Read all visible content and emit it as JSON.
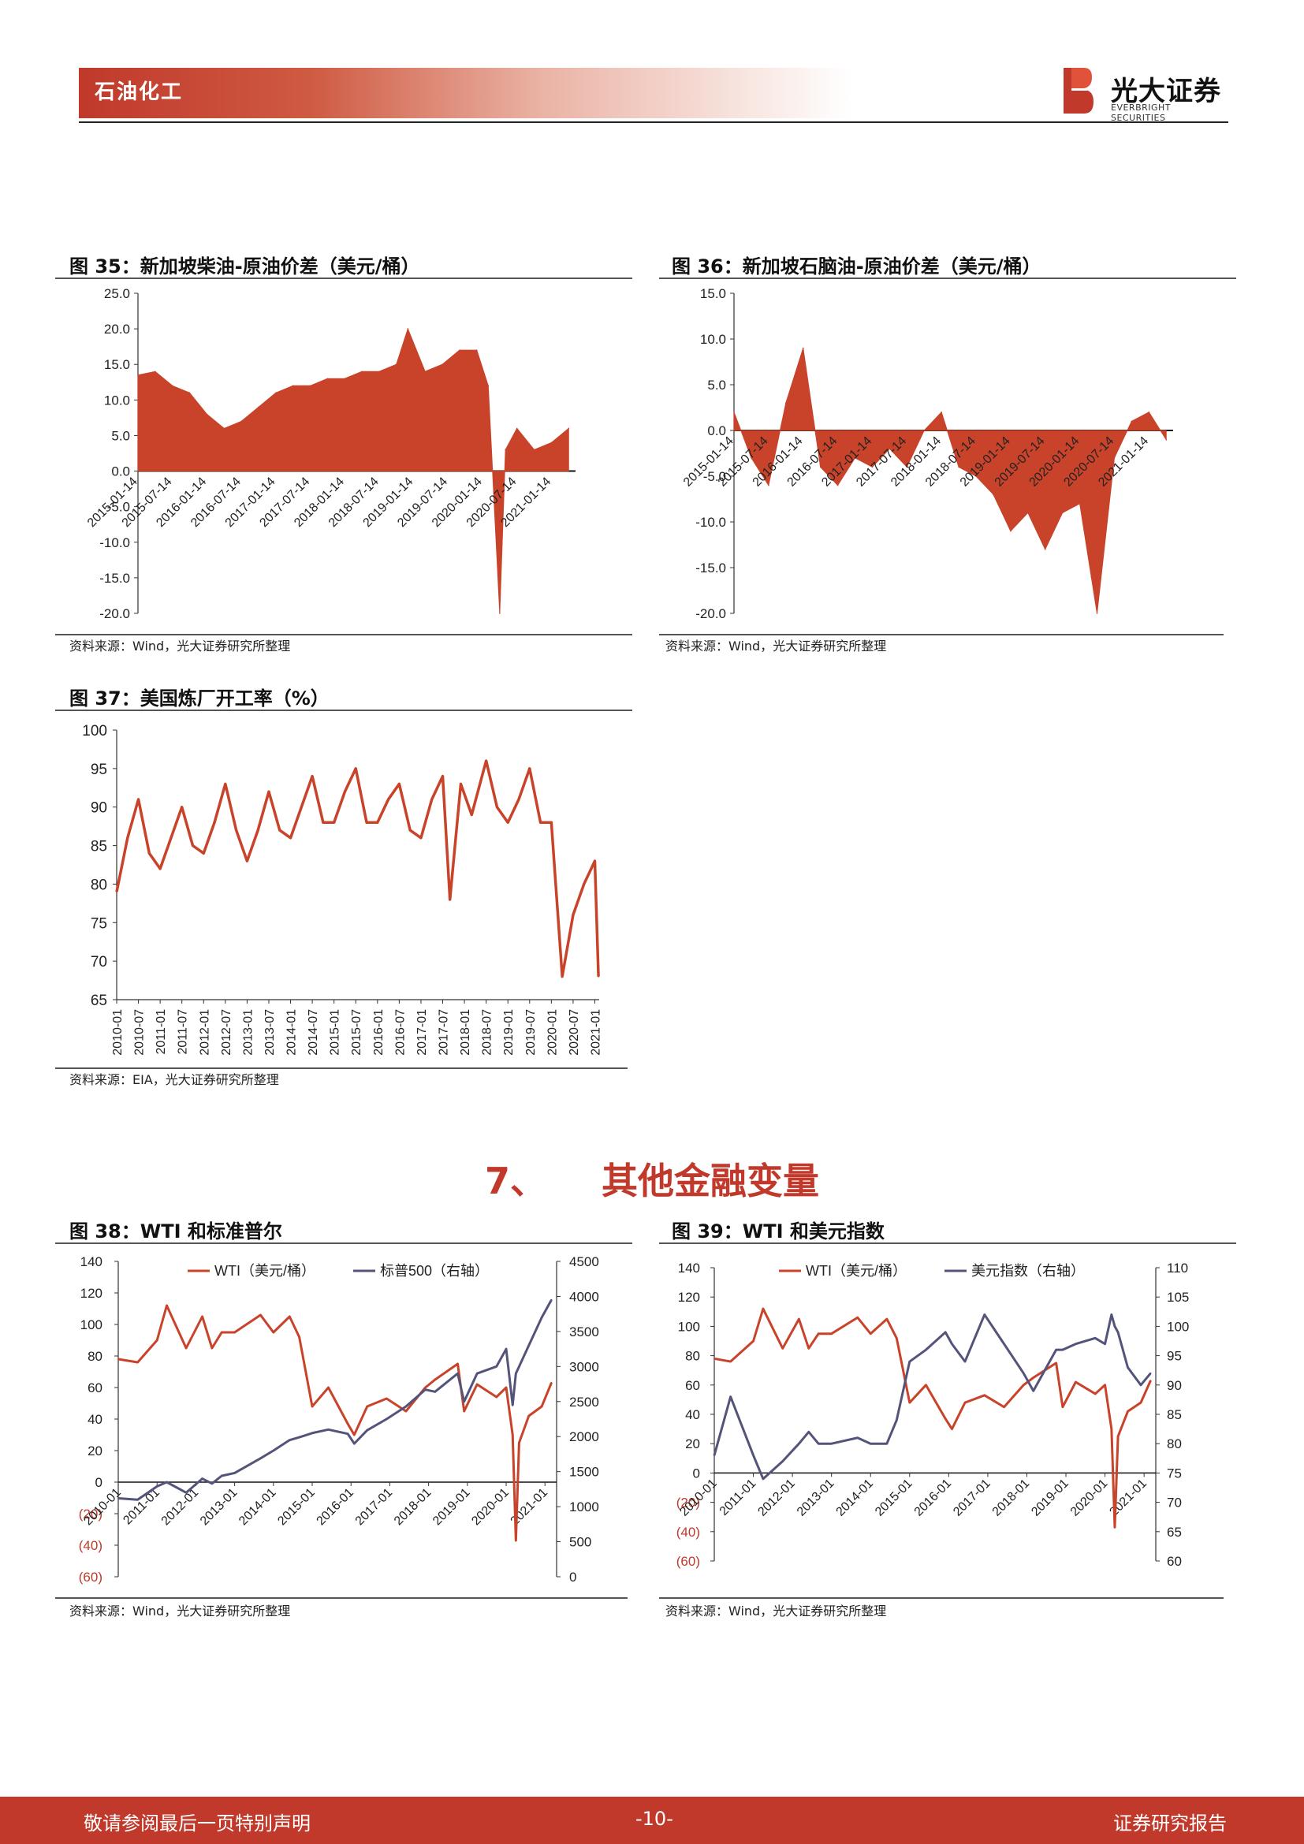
{
  "header": {
    "section": "石油化工",
    "logo_cn": "光大证券",
    "logo_en": "EVERBRIGHT SECURITIES",
    "accent": "#c0392b"
  },
  "figures": {
    "f35": {
      "title": "图 35：新加坡柴油-原油价差（美元/桶）",
      "source": "资料来源：Wind，光大证券研究所整理"
    },
    "f36": {
      "title": "图 36：新加坡石脑油-原油价差（美元/桶）",
      "source": "资料来源：Wind，光大证券研究所整理"
    },
    "f37": {
      "title": "图 37：美国炼厂开工率（%）",
      "source": "资料来源：EIA，光大证券研究所整理"
    },
    "f38": {
      "title": "图 38：WTI 和标准普尔",
      "source": "资料来源：Wind，光大证券研究所整理"
    },
    "f39": {
      "title": "图 39：WTI 和美元指数",
      "source": "资料来源：Wind，光大证券研究所整理"
    }
  },
  "section": {
    "number": "7、",
    "title": "其他金融变量"
  },
  "footer": {
    "left": "敬请参阅最后一页特别声明",
    "center": "-10-",
    "right": "证券研究报告"
  },
  "chart_data": [
    {
      "id": "f35",
      "type": "area",
      "x_ticks": [
        "2015-01-14",
        "2015-07-14",
        "2016-01-14",
        "2016-07-14",
        "2017-01-14",
        "2017-07-14",
        "2018-01-14",
        "2018-07-14",
        "2019-01-14",
        "2019-07-14",
        "2020-01-14",
        "2020-07-14",
        "2021-01-14"
      ],
      "y_ticks": [
        "25.0",
        "20.0",
        "15.0",
        "10.0",
        "5.0",
        "0.0",
        "-5.0",
        "-10.0",
        "-15.0",
        "-20.0"
      ],
      "ylim": [
        -20,
        25
      ],
      "x": [
        "2015-01",
        "2015-04",
        "2015-07",
        "2015-10",
        "2016-01",
        "2016-04",
        "2016-07",
        "2016-10",
        "2017-01",
        "2017-04",
        "2017-07",
        "2017-10",
        "2018-01",
        "2018-04",
        "2018-07",
        "2018-10",
        "2018-12",
        "2019-03",
        "2019-06",
        "2019-09",
        "2019-12",
        "2020-02",
        "2020-04",
        "2020-05",
        "2020-07",
        "2020-10",
        "2021-01",
        "2021-04"
      ],
      "values": [
        13.5,
        14,
        12,
        11,
        8,
        6,
        7,
        9,
        11,
        12,
        12,
        13,
        13,
        14,
        14,
        15,
        20,
        14,
        15,
        17,
        17,
        12,
        -20,
        3,
        6,
        3,
        4,
        6
      ],
      "color": "#c8432a"
    },
    {
      "id": "f36",
      "type": "area",
      "x_ticks": [
        "2015-01-14",
        "2015-07-14",
        "2016-01-14",
        "2016-07-14",
        "2017-01-14",
        "2017-07-14",
        "2018-01-14",
        "2018-07-14",
        "2019-01-14",
        "2019-07-14",
        "2020-01-14",
        "2020-07-14",
        "2021-01-14"
      ],
      "y_ticks": [
        "15.0",
        "10.0",
        "5.0",
        "0.0",
        "-5.0",
        "-10.0",
        "-15.0",
        "-20.0"
      ],
      "ylim": [
        -20,
        15
      ],
      "x": [
        "2015-01",
        "2015-04",
        "2015-07",
        "2015-10",
        "2016-01",
        "2016-04",
        "2016-07",
        "2016-10",
        "2017-01",
        "2017-04",
        "2017-07",
        "2017-10",
        "2018-01",
        "2018-04",
        "2018-07",
        "2018-10",
        "2019-01",
        "2019-04",
        "2019-07",
        "2019-10",
        "2020-01",
        "2020-03",
        "2020-04",
        "2020-07",
        "2020-10",
        "2021-01",
        "2021-04"
      ],
      "values": [
        2,
        -3,
        -6,
        3,
        9,
        -4,
        -6,
        -3,
        -4,
        -2,
        -4,
        0,
        2,
        -4,
        -5,
        -7,
        -11,
        -9,
        -13,
        -9,
        -8,
        -16,
        -20,
        -3,
        1,
        2,
        -1
      ],
      "color": "#c8432a"
    },
    {
      "id": "f37",
      "type": "line",
      "x_ticks": [
        "2010-01",
        "2010-07",
        "2011-01",
        "2011-07",
        "2012-01",
        "2012-07",
        "2013-01",
        "2013-07",
        "2014-01",
        "2014-07",
        "2015-01",
        "2015-07",
        "2016-01",
        "2016-07",
        "2017-01",
        "2017-07",
        "2018-01",
        "2018-07",
        "2019-01",
        "2019-07",
        "2020-01",
        "2020-07",
        "2021-01"
      ],
      "y_ticks": [
        "100",
        "95",
        "90",
        "85",
        "80",
        "75",
        "70",
        "65"
      ],
      "ylim": [
        65,
        100
      ],
      "x": [
        "2010-01",
        "2010-04",
        "2010-07",
        "2010-10",
        "2011-01",
        "2011-04",
        "2011-07",
        "2011-10",
        "2012-01",
        "2012-04",
        "2012-07",
        "2012-10",
        "2013-01",
        "2013-04",
        "2013-07",
        "2013-10",
        "2014-01",
        "2014-04",
        "2014-07",
        "2014-10",
        "2015-01",
        "2015-04",
        "2015-07",
        "2015-10",
        "2016-01",
        "2016-04",
        "2016-07",
        "2016-10",
        "2017-01",
        "2017-04",
        "2017-07",
        "2017-09",
        "2017-12",
        "2018-03",
        "2018-07",
        "2018-10",
        "2019-01",
        "2019-04",
        "2019-07",
        "2019-10",
        "2020-01",
        "2020-04",
        "2020-07",
        "2020-10",
        "2021-01",
        "2021-02"
      ],
      "values": [
        79,
        86,
        91,
        84,
        82,
        86,
        90,
        85,
        84,
        88,
        93,
        87,
        83,
        87,
        92,
        87,
        86,
        90,
        94,
        88,
        88,
        92,
        95,
        88,
        88,
        91,
        93,
        87,
        86,
        91,
        94,
        78,
        93,
        89,
        96,
        90,
        88,
        91,
        95,
        88,
        88,
        68,
        76,
        80,
        83,
        68
      ],
      "color": "#c8432a"
    },
    {
      "id": "f38",
      "type": "line",
      "legend": [
        "WTI（美元/桶）",
        "标普500（右轴）"
      ],
      "x_ticks": [
        "2010-01",
        "2011-01",
        "2012-01",
        "2013-01",
        "2014-01",
        "2015-01",
        "2016-01",
        "2017-01",
        "2018-01",
        "2019-01",
        "2020-01",
        "2021-01"
      ],
      "y_left_ticks": [
        "140",
        "120",
        "100",
        "80",
        "60",
        "40",
        "20",
        "0",
        "(20)",
        "(40)",
        "(60)"
      ],
      "y_right_ticks": [
        "4500",
        "4000",
        "3500",
        "3000",
        "2500",
        "2000",
        "1500",
        "1000",
        "500",
        "0"
      ],
      "ylim_left": [
        -60,
        140
      ],
      "ylim_right": [
        0,
        4500
      ],
      "x": [
        "2010-01",
        "2010-07",
        "2011-01",
        "2011-04",
        "2011-10",
        "2012-03",
        "2012-06",
        "2012-09",
        "2013-01",
        "2013-09",
        "2014-01",
        "2014-06",
        "2014-09",
        "2015-01",
        "2015-06",
        "2015-12",
        "2016-02",
        "2016-06",
        "2016-12",
        "2017-06",
        "2017-12",
        "2018-03",
        "2018-10",
        "2018-12",
        "2019-04",
        "2019-10",
        "2020-01",
        "2020-03",
        "2020-04",
        "2020-05",
        "2020-08",
        "2020-12",
        "2021-03"
      ],
      "series": [
        {
          "name": "WTI（美元/桶）",
          "color": "#c8432a",
          "values": [
            78,
            76,
            90,
            112,
            85,
            105,
            85,
            95,
            95,
            106,
            95,
            105,
            92,
            48,
            60,
            37,
            30,
            48,
            53,
            45,
            60,
            65,
            75,
            45,
            62,
            54,
            60,
            30,
            -37,
            25,
            42,
            48,
            63
          ]
        },
        {
          "name": "标普500（右轴）",
          "color": "#54547a",
          "values": [
            1120,
            1100,
            1290,
            1350,
            1200,
            1400,
            1330,
            1440,
            1480,
            1690,
            1800,
            1950,
            1990,
            2050,
            2100,
            2040,
            1900,
            2090,
            2250,
            2430,
            2670,
            2640,
            2900,
            2500,
            2900,
            3000,
            3250,
            2450,
            2900,
            3000,
            3300,
            3700,
            3950
          ]
        }
      ]
    },
    {
      "id": "f39",
      "type": "line",
      "legend": [
        "WTI（美元/桶）",
        "美元指数（右轴）"
      ],
      "x_ticks": [
        "2010-01",
        "2011-01",
        "2012-01",
        "2013-01",
        "2014-01",
        "2015-01",
        "2016-01",
        "2017-01",
        "2018-01",
        "2019-01",
        "2020-01",
        "2021-01"
      ],
      "y_left_ticks": [
        "140",
        "120",
        "100",
        "80",
        "60",
        "40",
        "20",
        "0",
        "(20)",
        "(40)",
        "(60)"
      ],
      "y_right_ticks": [
        "110",
        "105",
        "100",
        "95",
        "90",
        "85",
        "80",
        "75",
        "70",
        "65",
        "60"
      ],
      "ylim_left": [
        -60,
        140
      ],
      "ylim_right": [
        60,
        110
      ],
      "x": [
        "2010-01",
        "2010-06",
        "2011-01",
        "2011-04",
        "2011-10",
        "2012-03",
        "2012-06",
        "2012-09",
        "2013-01",
        "2013-09",
        "2014-01",
        "2014-06",
        "2014-09",
        "2015-01",
        "2015-06",
        "2015-12",
        "2016-02",
        "2016-06",
        "2016-12",
        "2017-06",
        "2017-12",
        "2018-03",
        "2018-10",
        "2018-12",
        "2019-04",
        "2019-10",
        "2020-01",
        "2020-03",
        "2020-04",
        "2020-05",
        "2020-08",
        "2020-12",
        "2021-03"
      ],
      "series": [
        {
          "name": "WTI（美元/桶）",
          "color": "#c8432a",
          "values": [
            78,
            76,
            90,
            112,
            85,
            105,
            85,
            95,
            95,
            106,
            95,
            105,
            92,
            48,
            60,
            37,
            30,
            48,
            53,
            45,
            60,
            65,
            75,
            45,
            62,
            54,
            60,
            30,
            -37,
            25,
            42,
            48,
            63
          ]
        },
        {
          "name": "美元指数（右轴）",
          "color": "#54547a",
          "values": [
            78,
            88,
            78,
            74,
            77,
            80,
            82,
            80,
            80,
            81,
            80,
            80,
            84,
            94,
            96,
            99,
            97,
            94,
            102,
            97,
            92,
            89,
            96,
            96,
            97,
            98,
            97,
            102,
            100,
            99,
            93,
            90,
            92
          ]
        }
      ]
    }
  ]
}
